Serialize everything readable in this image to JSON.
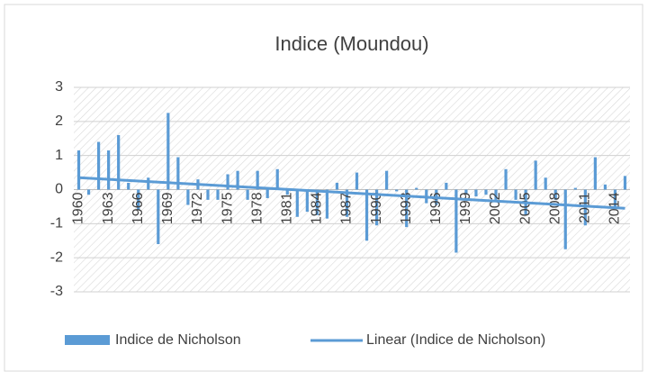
{
  "chart_data": {
    "type": "bar",
    "title": "Indice (Moundou)",
    "categories": [
      "1960",
      null,
      null,
      "1963",
      null,
      null,
      "1966",
      null,
      null,
      "1969",
      null,
      null,
      "1972",
      null,
      null,
      "1975",
      null,
      null,
      "1978",
      null,
      null,
      "1981",
      null,
      null,
      "1984",
      null,
      null,
      "1987",
      null,
      null,
      "1990",
      null,
      null,
      "1993",
      null,
      null,
      "1996",
      null,
      null,
      "1999",
      null,
      null,
      "2002",
      null,
      null,
      "2005",
      null,
      null,
      "2008",
      null,
      null,
      "2011",
      null,
      null,
      "2014",
      null
    ],
    "series": [
      {
        "name": "Indice de Nicholson",
        "color": "#5b9bd5",
        "values": [
          1.15,
          -0.15,
          1.4,
          1.15,
          1.6,
          0.2,
          -0.6,
          0.35,
          -1.6,
          2.25,
          0.95,
          -0.45,
          0.3,
          -0.3,
          -0.3,
          0.45,
          0.55,
          -0.3,
          0.55,
          -0.25,
          0.6,
          -0.15,
          -0.8,
          -0.65,
          -0.75,
          -0.85,
          0.2,
          -0.8,
          0.5,
          -1.5,
          -1.05,
          0.55,
          -0.05,
          -1.1,
          0.05,
          -0.4,
          -0.45,
          0.2,
          -1.85,
          -0.15,
          -0.2,
          -0.15,
          -0.3,
          0.6,
          -0.3,
          -0.75,
          0.85,
          0.35,
          -0.3,
          -1.75,
          0.05,
          -1.05,
          0.95,
          0.15,
          -0.55,
          0.4
        ]
      }
    ],
    "trendline": {
      "name": "Linear (Indice de Nicholson)",
      "color": "#5b9bd5",
      "start": 0.35,
      "end": -0.55
    },
    "ylim": [
      -3,
      3
    ],
    "yticks": [
      -3,
      -2,
      -1,
      0,
      1,
      2,
      3
    ],
    "grid": true
  }
}
